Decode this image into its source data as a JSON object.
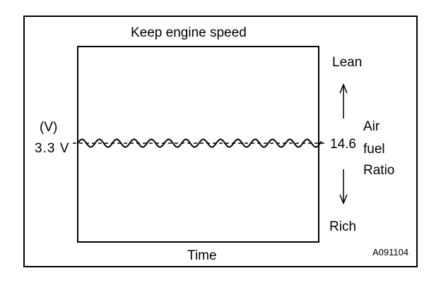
{
  "diagram": {
    "title": "Keep engine speed",
    "x_label": "Time",
    "y_unit": "(V)",
    "voltage_label": "3.3 V",
    "afr_value": "14.6",
    "afr_label_lines": [
      "Air",
      "fuel",
      "Ratio"
    ],
    "lean_label": "Lean",
    "rich_label": "Rich",
    "figure_id": "A091104",
    "colors": {
      "ink": "#000000",
      "background": "#ffffff"
    }
  }
}
